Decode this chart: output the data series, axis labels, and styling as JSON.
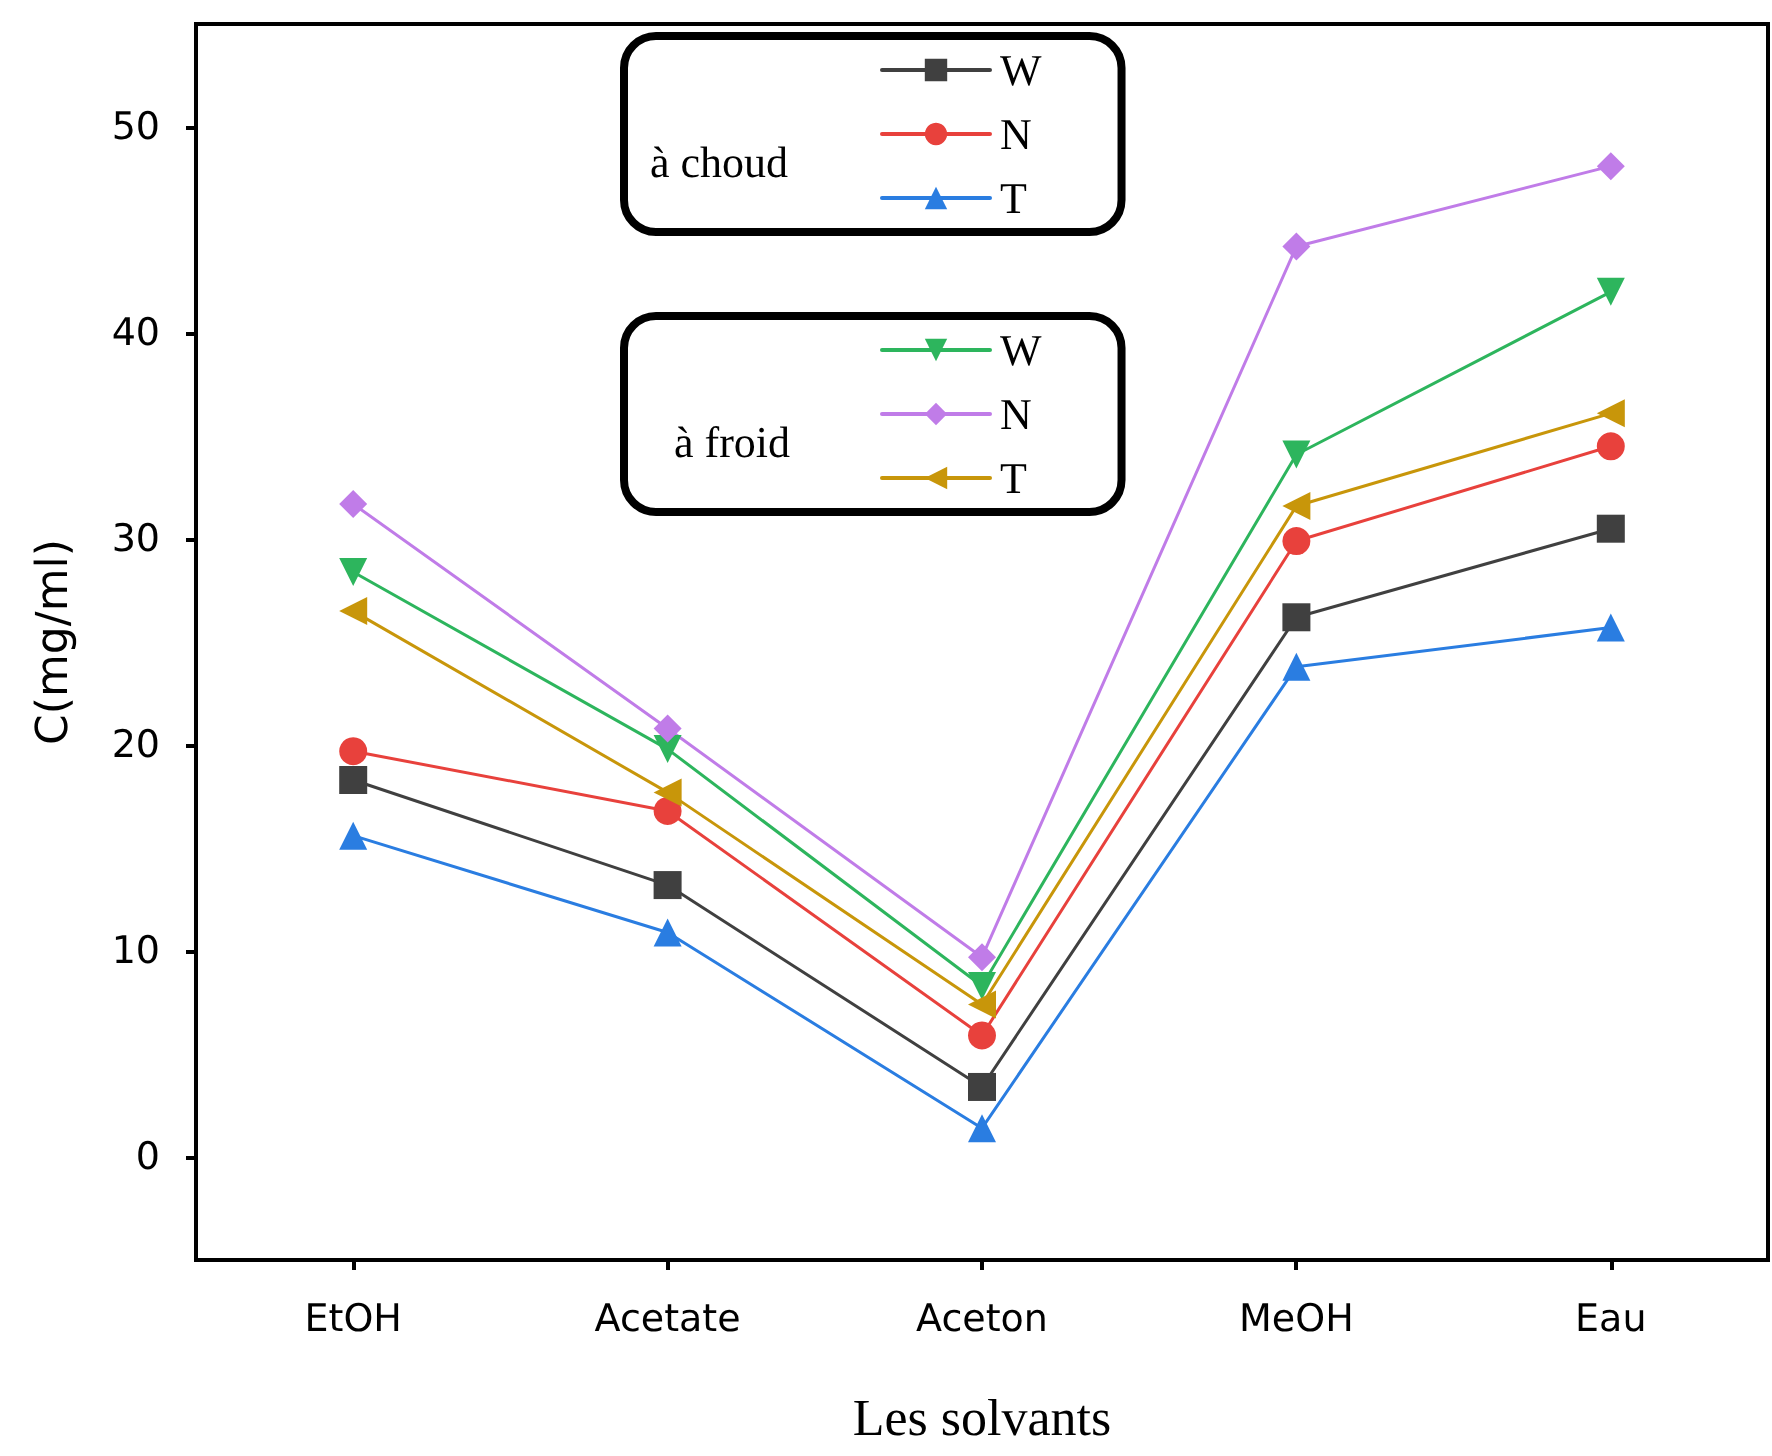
{
  "chart_data": {
    "type": "line",
    "xlabel": "Les solvants",
    "ylabel": "C(mg/ml)",
    "categories": [
      "EtOH",
      "Acetate",
      "Aceton",
      "MeOH",
      "Eau"
    ],
    "ylim": [
      -5,
      55
    ],
    "yticks": [
      0,
      10,
      20,
      30,
      40,
      50
    ],
    "grid": false,
    "legend": "top",
    "annotations": [
      "à choud",
      "à froid"
    ],
    "series": [
      {
        "name": "W",
        "color": "#404040",
        "marker": "square",
        "values": [
          18.3,
          13.2,
          3.4,
          26.2,
          30.5
        ]
      },
      {
        "name": "N",
        "color": "#e8413c",
        "marker": "circle",
        "values": [
          19.7,
          16.8,
          5.9,
          29.9,
          34.5
        ]
      },
      {
        "name": "T",
        "color": "#2a7de1",
        "marker": "triangle",
        "values": [
          15.6,
          10.9,
          1.4,
          23.8,
          25.7
        ]
      },
      {
        "name": "W",
        "color": "#2db55d",
        "marker": "triangle-down",
        "values": [
          28.4,
          19.8,
          8.3,
          34.1,
          42.0
        ]
      },
      {
        "name": "N",
        "color": "#c07ce8",
        "marker": "diamond",
        "values": [
          31.7,
          20.8,
          9.7,
          44.2,
          48.1
        ]
      },
      {
        "name": "T",
        "color": "#c8960a",
        "marker": "triangle-left",
        "values": [
          26.5,
          17.7,
          7.4,
          31.6,
          36.1
        ]
      }
    ]
  }
}
